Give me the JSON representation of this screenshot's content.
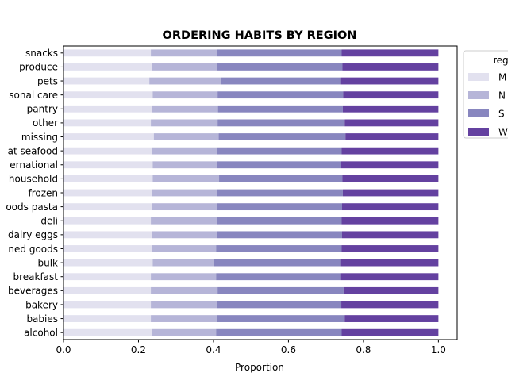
{
  "chart_data": {
    "type": "bar",
    "orientation": "horizontal",
    "stacked": true,
    "title": "ORDERING HABITS BY REGION",
    "xlabel": "Proportion",
    "ylabel": "",
    "xlim": [
      0,
      1.05
    ],
    "xticks": [
      "0.0",
      "0.2",
      "0.4",
      "0.6",
      "0.8",
      "1.0"
    ],
    "grid": false,
    "legend": {
      "title": "reg",
      "placement": "outside-right-top",
      "entries": [
        "M",
        "N",
        "S",
        "W"
      ]
    },
    "categories": [
      "alcohol",
      "babies",
      "bakery",
      "beverages",
      "breakfast",
      "bulk",
      "ned goods",
      "dairy eggs",
      "deli",
      "oods pasta",
      "frozen",
      "household",
      "ernational",
      "at seafood",
      "missing",
      "other",
      "pantry",
      "sonal care",
      "pets",
      "produce",
      "snacks"
    ],
    "series": [
      {
        "name": "M",
        "color": "#e2e1ef",
        "values": [
          0.236,
          0.233,
          0.233,
          0.233,
          0.233,
          0.238,
          0.236,
          0.236,
          0.233,
          0.236,
          0.236,
          0.238,
          0.238,
          0.236,
          0.241,
          0.233,
          0.236,
          0.238,
          0.229,
          0.236,
          0.233
        ]
      },
      {
        "name": "N",
        "color": "#b6b5d8",
        "values": [
          0.171,
          0.176,
          0.176,
          0.178,
          0.174,
          0.163,
          0.171,
          0.174,
          0.176,
          0.173,
          0.173,
          0.177,
          0.172,
          0.173,
          0.173,
          0.178,
          0.176,
          0.173,
          0.191,
          0.174,
          0.176
        ]
      },
      {
        "name": "S",
        "color": "#8886bf",
        "values": [
          0.335,
          0.341,
          0.332,
          0.336,
          0.331,
          0.337,
          0.335,
          0.333,
          0.333,
          0.334,
          0.336,
          0.329,
          0.33,
          0.333,
          0.338,
          0.339,
          0.333,
          0.335,
          0.318,
          0.334,
          0.333
        ]
      },
      {
        "name": "W",
        "color": "#6441a0",
        "values": [
          0.258,
          0.25,
          0.259,
          0.253,
          0.262,
          0.262,
          0.258,
          0.257,
          0.258,
          0.257,
          0.255,
          0.256,
          0.26,
          0.258,
          0.248,
          0.25,
          0.255,
          0.254,
          0.262,
          0.256,
          0.258
        ]
      }
    ]
  }
}
